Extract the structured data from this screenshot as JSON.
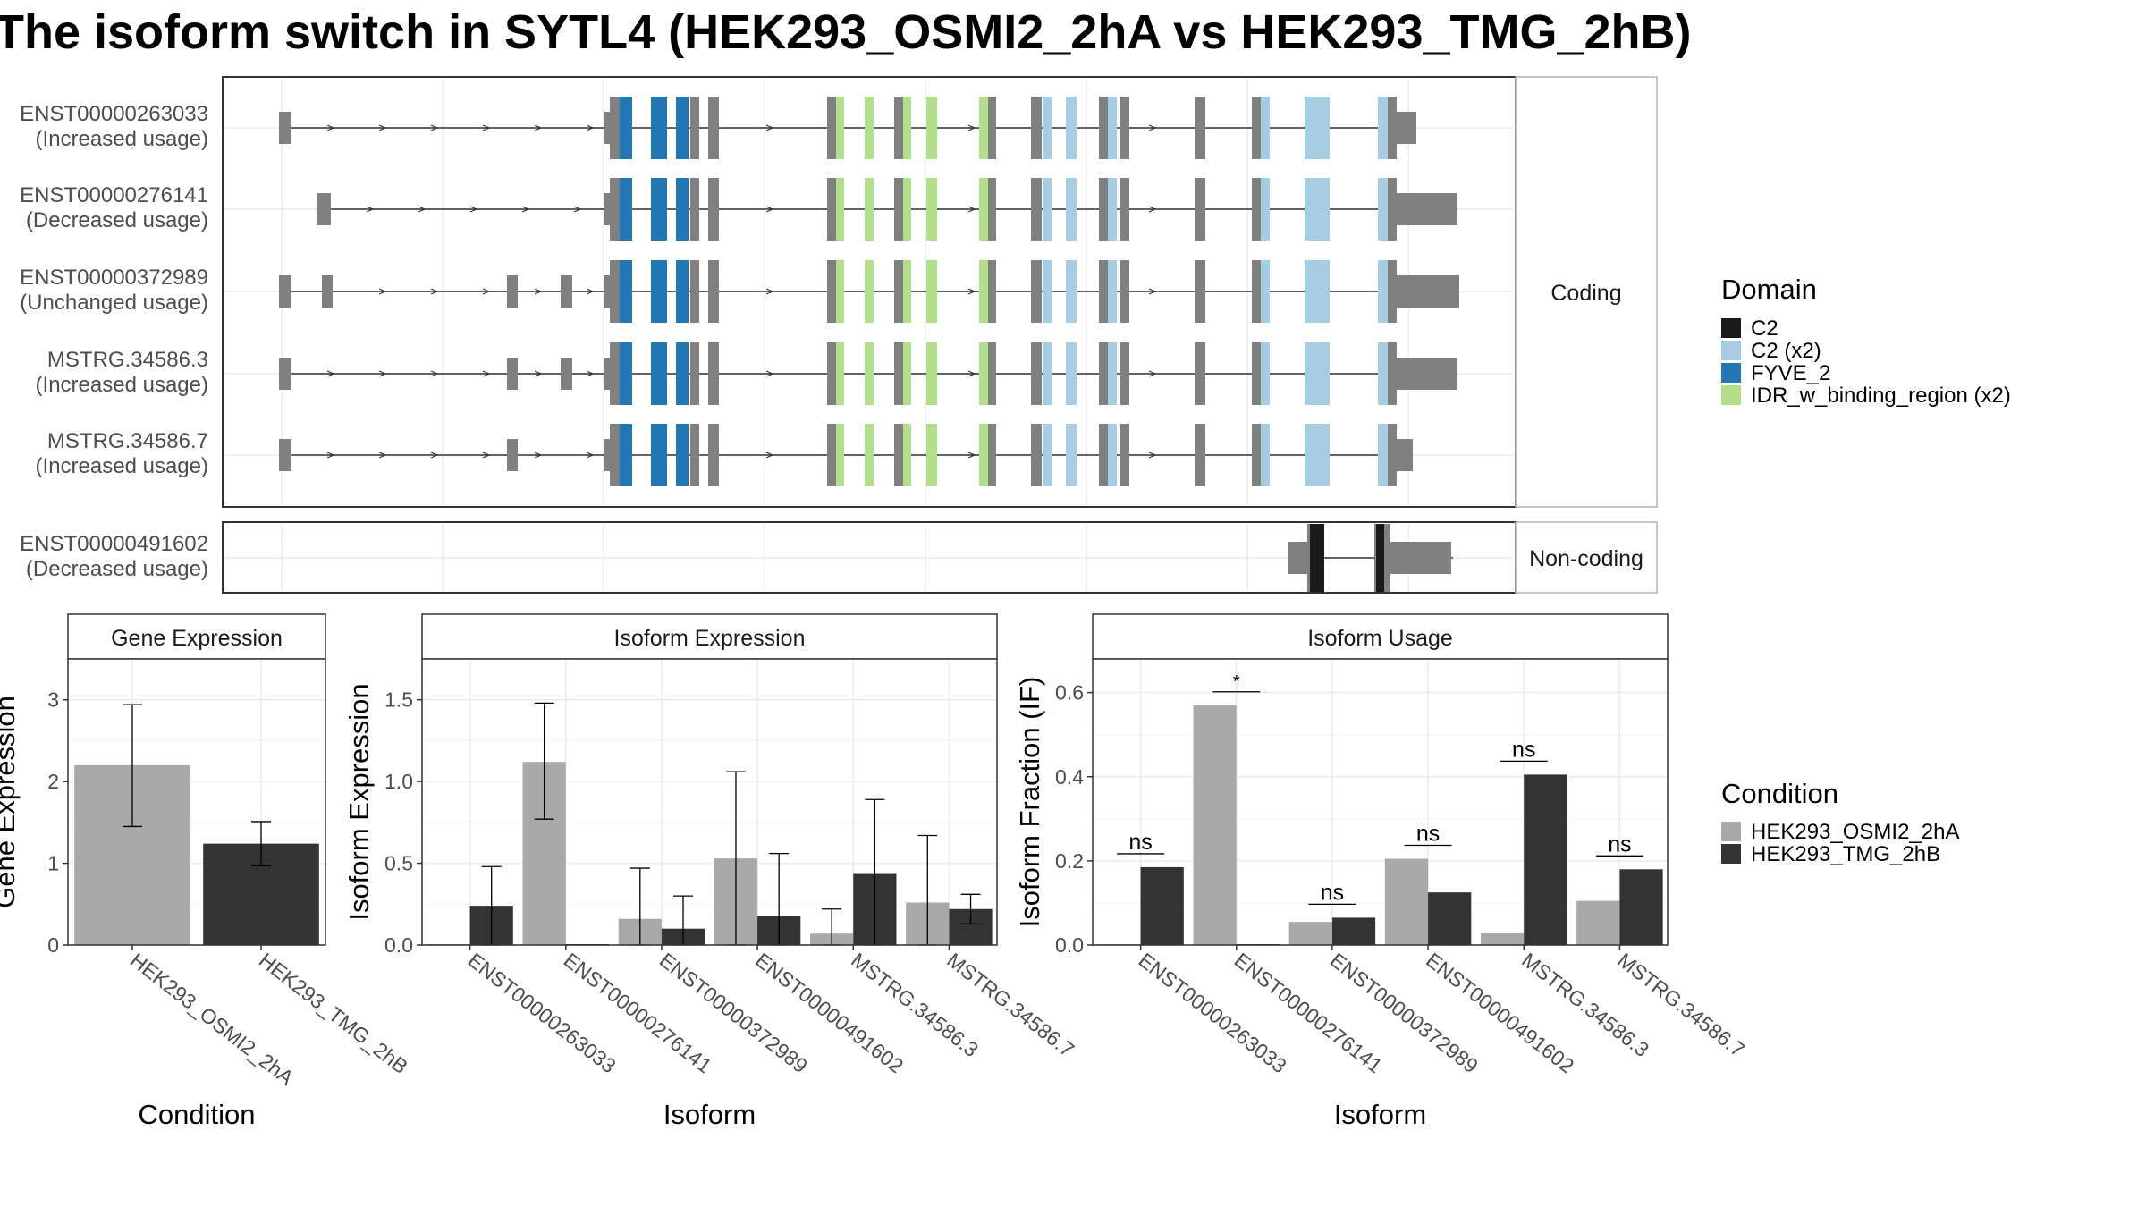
{
  "title": "The isoform switch in SYTL4 (HEK293_OSMI2_2hA vs HEK293_TMG_2hB)",
  "colors": {
    "cond1": "#a9a9a9",
    "cond2": "#333333",
    "exon": "#808080",
    "domains": {
      "C2": "#1a1a1a",
      "C2 (x2)": "#a6cde2",
      "FYVE_2": "#2178b4",
      "IDR_w_binding_region (x2)": "#b2df8a"
    }
  },
  "structure": {
    "coding_label": "Coding",
    "noncoding_label": "Non-coding",
    "transcripts": [
      {
        "id": "ENST00000263033",
        "status": "(Increased usage)",
        "group": "coding"
      },
      {
        "id": "ENST00000276141",
        "status": "(Decreased usage)",
        "group": "coding"
      },
      {
        "id": "ENST00000372989",
        "status": "(Unchanged usage)",
        "group": "coding"
      },
      {
        "id": "MSTRG.34586.3",
        "status": "(Increased usage)",
        "group": "coding"
      },
      {
        "id": "MSTRG.34586.7",
        "status": "(Increased usage)",
        "group": "coding"
      },
      {
        "id": "ENST00000491602",
        "status": "(Decreased usage)",
        "group": "noncoding"
      }
    ]
  },
  "legends": {
    "domain_title": "Domain",
    "domain_items": [
      "C2",
      "C2 (x2)",
      "FYVE_2",
      "IDR_w_binding_region (x2)"
    ],
    "condition_title": "Condition",
    "condition_items": [
      "HEK293_OSMI2_2hA",
      "HEK293_TMG_2hB"
    ]
  },
  "chart_data": [
    {
      "type": "bar",
      "title": "Gene Expression",
      "xlabel": "Condition",
      "ylabel": "Gene Expression",
      "ylim": [
        0,
        3.5
      ],
      "yticks": [
        0,
        1,
        2,
        3
      ],
      "categories": [
        "HEK293_OSMI2_2hA",
        "HEK293_TMG_2hB"
      ],
      "values": [
        2.2,
        1.24
      ],
      "error_low": [
        1.45,
        0.97
      ],
      "error_high": [
        2.94,
        1.51
      ]
    },
    {
      "type": "bar",
      "title": "Isoform Expression",
      "xlabel": "Isoform",
      "ylabel": "Isoform Expression",
      "ylim": [
        0,
        1.75
      ],
      "yticks": [
        0.0,
        0.5,
        1.0,
        1.5
      ],
      "categories": [
        "ENST00000263033",
        "ENST00000276141",
        "ENST00000372989",
        "ENST00000491602",
        "MSTRG.34586.3",
        "MSTRG.34586.7"
      ],
      "series": [
        {
          "name": "HEK293_OSMI2_2hA",
          "values": [
            0.0,
            1.12,
            0.16,
            0.53,
            0.07,
            0.26
          ],
          "error_low": [
            0.0,
            0.77,
            0.0,
            0.0,
            0.0,
            0.0
          ],
          "error_high": [
            0.0,
            1.48,
            0.47,
            1.06,
            0.22,
            0.67
          ]
        },
        {
          "name": "HEK293_TMG_2hB",
          "values": [
            0.24,
            0.0,
            0.1,
            0.18,
            0.44,
            0.22
          ],
          "error_low": [
            0.0,
            0.0,
            0.0,
            0.0,
            0.0,
            0.13
          ],
          "error_high": [
            0.48,
            0.0,
            0.3,
            0.56,
            0.89,
            0.31
          ]
        }
      ]
    },
    {
      "type": "bar",
      "title": "Isoform Usage",
      "xlabel": "Isoform",
      "ylabel": "Isoform Fraction (IF)",
      "ylim": [
        0,
        0.68
      ],
      "yticks": [
        0.0,
        0.2,
        0.4,
        0.6
      ],
      "categories": [
        "ENST00000263033",
        "ENST00000276141",
        "ENST00000372989",
        "ENST00000491602",
        "MSTRG.34586.3",
        "MSTRG.34586.7"
      ],
      "series": [
        {
          "name": "HEK293_OSMI2_2hA",
          "values": [
            0.0,
            0.57,
            0.055,
            0.205,
            0.03,
            0.105
          ]
        },
        {
          "name": "HEK293_TMG_2hB",
          "values": [
            0.185,
            0.0,
            0.065,
            0.125,
            0.405,
            0.18
          ]
        }
      ],
      "significance": [
        "ns",
        "*",
        "ns",
        "ns",
        "ns",
        "ns"
      ]
    }
  ]
}
